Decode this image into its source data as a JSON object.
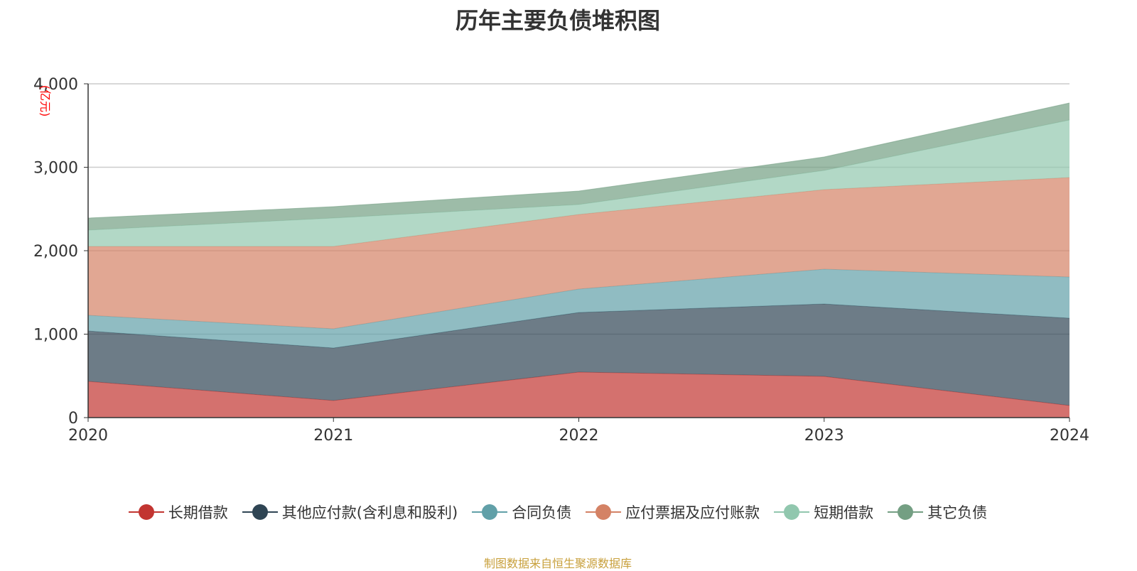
{
  "chart_data": {
    "type": "area",
    "stacked": true,
    "title": "历年主要负债堆积图",
    "ylabel": "(亿元)",
    "xlabel": "",
    "categories": [
      "2020",
      "2021",
      "2022",
      "2023",
      "2024"
    ],
    "ylim": [
      0,
      4000
    ],
    "yticks": [
      "0",
      "1,000",
      "2,000",
      "3,000",
      "4,000"
    ],
    "grid": true,
    "legend_position": "bottom",
    "series": [
      {
        "name": "长期借款",
        "color": "#c23531",
        "values": [
          434,
          204,
          545,
          494,
          145
        ]
      },
      {
        "name": "其他应付款(含利息和股利)",
        "color": "#2f4554",
        "values": [
          604,
          630,
          715,
          868,
          1046
        ]
      },
      {
        "name": "合同负债",
        "color": "#61a0a8",
        "values": [
          188,
          230,
          280,
          417,
          494
        ]
      },
      {
        "name": "应付票据及应付账款",
        "color": "#d48265",
        "values": [
          825,
          987,
          894,
          953,
          1192
        ]
      },
      {
        "name": "短期借款",
        "color": "#91c7ae",
        "values": [
          196,
          340,
          119,
          230,
          689
        ]
      },
      {
        "name": "其它负债",
        "color": "#749f83",
        "values": [
          144,
          137,
          162,
          161,
          204
        ]
      }
    ]
  },
  "source": "制图数据来自恒生聚源数据库"
}
